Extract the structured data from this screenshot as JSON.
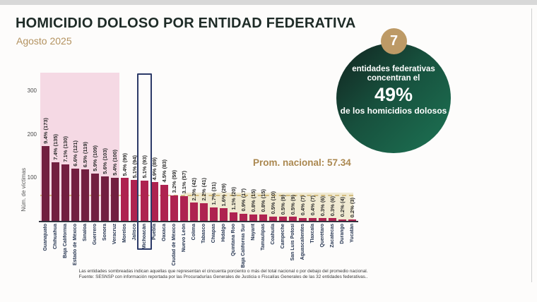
{
  "header": {
    "title": "HOMICIDIO DOLOSO POR ENTIDAD FEDERATIVA",
    "subtitle": "Agosto 2025"
  },
  "badge": {
    "number": "7",
    "line1": "entidades federativas",
    "line2": "concentran el",
    "percent": "49%",
    "line3": "de los homicidios dolosos"
  },
  "annotation": {
    "prom_label": "Prom. nacional: 57.34"
  },
  "chart_data": {
    "type": "bar",
    "title": "HOMICIDIO DOLOSO POR ENTIDAD FEDERATIVA",
    "subtitle": "Agosto 2025",
    "ylabel": "Núm. de víctimas",
    "yticks": [
      100,
      200,
      300
    ],
    "ylim": [
      0,
      340
    ],
    "grid": false,
    "categories": [
      "Guanajuato",
      "Chihuahua",
      "Baja California",
      "Estado de México",
      "Sinaloa",
      "Guerrero",
      "Sonora",
      "Veracruz",
      "Morelos",
      "Jalisco",
      "Michoacán",
      "Puebla",
      "Oaxaca",
      "Ciudad de México",
      "Nuevo León",
      "Colima",
      "Tabasco",
      "Chiapas",
      "Hidalgo",
      "Quintana Roo",
      "Baja California Sur",
      "Nayarit",
      "Tamaulipas",
      "Coahuila",
      "Campeche",
      "San Luis Potosí",
      "Aguascalientes",
      "Tlaxcala",
      "Querétaro",
      "Zacatecas",
      "Durango",
      "Yucatán"
    ],
    "values": [
      173,
      135,
      130,
      121,
      119,
      109,
      103,
      100,
      99,
      94,
      93,
      89,
      83,
      59,
      57,
      42,
      41,
      31,
      29,
      20,
      17,
      15,
      15,
      10,
      9,
      9,
      7,
      7,
      6,
      6,
      4,
      3
    ],
    "percents": [
      "9.4",
      "7.4",
      "7.1",
      "6.6",
      "6.5",
      "5.9",
      "5.6",
      "5.4",
      "5.4",
      "5.1",
      "5.1",
      "4.9",
      "4.5",
      "3.2",
      "3.1",
      "2.3",
      "2.2",
      "1.7",
      "1.6",
      "1.1",
      "0.9",
      "0.8",
      "0.8",
      "0.5",
      "0.5",
      "0.5",
      "0.4",
      "0.4",
      "0.3",
      "0.3",
      "0.2",
      "0.2"
    ],
    "national_average": 57.34,
    "highlight_state": "Michoacán",
    "highlight_index": 10,
    "shaded_above_count": 8,
    "shaded_below_start_index": 15
  },
  "colors": {
    "bar_dark": "#721f40",
    "bar_bright": "#ae2350",
    "pink_region": "#f5d9e4",
    "cream_region": "#f0ead2",
    "highlight_border": "#2c3a68",
    "accent_gold": "#bd9a66",
    "badge_green_dark": "#12231f",
    "badge_green": "#1d7354",
    "avg_dash": "#ccb16b"
  },
  "footer": {
    "line1": "Las entidades sombreadas indican aquellas que representan el cincuenta porciento o más del total nacional o por debajo del promedio nacional.",
    "line2": "Fuente: SESNSP con información reportada por las Procuradurías Generales de Justicia o Fiscalías Generales de las 32 entidades federativas.."
  }
}
